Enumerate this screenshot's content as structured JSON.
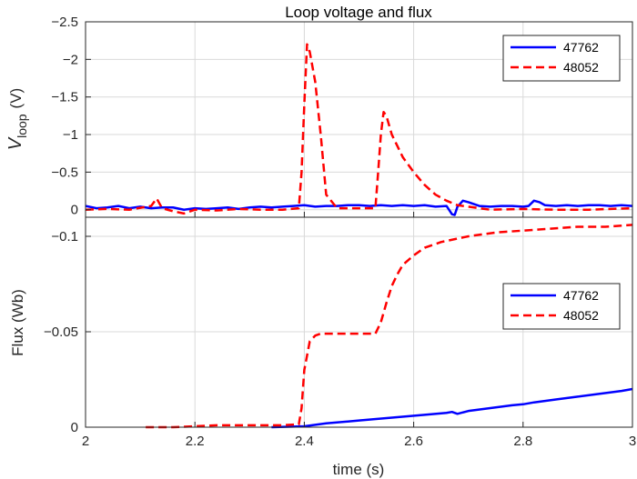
{
  "chart_data": [
    {
      "type": "line",
      "title": "Loop voltage and flux",
      "ylabel_main": "V",
      "ylabel_sub": "loop",
      "ylabel_unit": "(V)",
      "xlabel": "",
      "xlim": [
        2,
        3
      ],
      "ylim": [
        0.1,
        -2.5
      ],
      "y_direction": "reversed",
      "grid": true,
      "legend_position": "top-right",
      "x_ticks": [
        "2",
        "2.2",
        "2.4",
        "2.6",
        "2.8",
        "3"
      ],
      "y_ticks": [
        {
          "v": 0,
          "label": "0"
        },
        {
          "v": -0.5,
          "label": "−0.5"
        },
        {
          "v": -1,
          "label": "−1"
        },
        {
          "v": -1.5,
          "label": "−1.5"
        },
        {
          "v": -2,
          "label": "−2"
        },
        {
          "v": -2.5,
          "label": "−2.5"
        }
      ],
      "series": [
        {
          "name": "47762",
          "color": "#0000ff",
          "style": "solid",
          "x": [
            2.0,
            2.02,
            2.04,
            2.06,
            2.08,
            2.1,
            2.12,
            2.14,
            2.16,
            2.18,
            2.2,
            2.22,
            2.24,
            2.26,
            2.28,
            2.3,
            2.32,
            2.34,
            2.36,
            2.38,
            2.4,
            2.42,
            2.44,
            2.46,
            2.48,
            2.5,
            2.52,
            2.54,
            2.56,
            2.58,
            2.6,
            2.62,
            2.64,
            2.66,
            2.67,
            2.675,
            2.68,
            2.69,
            2.7,
            2.72,
            2.74,
            2.76,
            2.78,
            2.8,
            2.81,
            2.82,
            2.83,
            2.84,
            2.86,
            2.88,
            2.9,
            2.92,
            2.94,
            2.96,
            2.98,
            3.0
          ],
          "y": [
            -0.05,
            -0.02,
            -0.03,
            -0.05,
            -0.02,
            -0.04,
            -0.02,
            -0.03,
            -0.03,
            0.0,
            -0.02,
            -0.01,
            -0.02,
            -0.03,
            -0.01,
            -0.03,
            -0.04,
            -0.03,
            -0.04,
            -0.05,
            -0.06,
            -0.04,
            -0.05,
            -0.05,
            -0.06,
            -0.06,
            -0.05,
            -0.06,
            -0.05,
            -0.06,
            -0.05,
            -0.06,
            -0.04,
            -0.05,
            0.06,
            0.07,
            -0.04,
            -0.12,
            -0.1,
            -0.05,
            -0.04,
            -0.05,
            -0.05,
            -0.04,
            -0.05,
            -0.12,
            -0.1,
            -0.06,
            -0.05,
            -0.06,
            -0.05,
            -0.06,
            -0.06,
            -0.05,
            -0.06,
            -0.05
          ]
        },
        {
          "name": "48052",
          "color": "#ff0000",
          "style": "dashed",
          "x": [
            2.0,
            2.04,
            2.08,
            2.12,
            2.13,
            2.14,
            2.16,
            2.18,
            2.2,
            2.24,
            2.28,
            2.32,
            2.36,
            2.39,
            2.395,
            2.4,
            2.405,
            2.41,
            2.415,
            2.42,
            2.43,
            2.44,
            2.46,
            2.5,
            2.53,
            2.535,
            2.54,
            2.545,
            2.55,
            2.56,
            2.57,
            2.58,
            2.6,
            2.62,
            2.64,
            2.66,
            2.68,
            2.7,
            2.74,
            2.8,
            2.86,
            2.92,
            3.0
          ],
          "y": [
            0.0,
            -0.01,
            0.0,
            -0.05,
            -0.15,
            -0.02,
            0.02,
            0.05,
            0.0,
            0.01,
            -0.01,
            0.0,
            0.0,
            -0.02,
            -0.5,
            -1.4,
            -2.2,
            -2.1,
            -1.9,
            -1.7,
            -1.0,
            -0.2,
            -0.02,
            -0.02,
            -0.02,
            -0.5,
            -1.0,
            -1.3,
            -1.25,
            -1.0,
            -0.85,
            -0.7,
            -0.5,
            -0.33,
            -0.2,
            -0.12,
            -0.06,
            -0.04,
            0.0,
            -0.01,
            0.0,
            0.0,
            -0.02
          ]
        }
      ]
    },
    {
      "type": "line",
      "title": "",
      "ylabel": "Flux (Wb)",
      "xlabel": "time (s)",
      "xlim": [
        2,
        3
      ],
      "ylim": [
        0,
        -0.11
      ],
      "y_direction": "reversed",
      "grid": true,
      "legend_position": "center-right",
      "x_ticks": [
        "2",
        "2.2",
        "2.4",
        "2.6",
        "2.8",
        "3"
      ],
      "y_ticks": [
        {
          "v": 0,
          "label": "0"
        },
        {
          "v": -0.05,
          "label": "−0.05"
        },
        {
          "v": -0.1,
          "label": "−0.1"
        }
      ],
      "series": [
        {
          "name": "47762",
          "color": "#0000ff",
          "style": "solid",
          "x": [
            2.34,
            2.4,
            2.44,
            2.5,
            2.56,
            2.62,
            2.66,
            2.67,
            2.68,
            2.7,
            2.74,
            2.78,
            2.8,
            2.82,
            2.86,
            2.9,
            2.94,
            2.98,
            3.0
          ],
          "y": [
            0.0,
            -0.0005,
            -0.002,
            -0.0035,
            -0.005,
            -0.0065,
            -0.0075,
            -0.008,
            -0.007,
            -0.0085,
            -0.01,
            -0.0115,
            -0.012,
            -0.013,
            -0.0145,
            -0.016,
            -0.0175,
            -0.019,
            -0.02
          ]
        },
        {
          "name": "48052",
          "color": "#ff0000",
          "style": "dashed",
          "x": [
            2.11,
            2.16,
            2.2,
            2.24,
            2.3,
            2.36,
            2.39,
            2.395,
            2.4,
            2.41,
            2.42,
            2.43,
            2.44,
            2.5,
            2.53,
            2.54,
            2.55,
            2.56,
            2.57,
            2.58,
            2.6,
            2.62,
            2.65,
            2.7,
            2.75,
            2.8,
            2.85,
            2.9,
            2.95,
            3.0
          ],
          "y": [
            0.0,
            0.0,
            -0.0005,
            -0.001,
            -0.001,
            -0.001,
            -0.0015,
            -0.01,
            -0.03,
            -0.045,
            -0.048,
            -0.049,
            -0.049,
            -0.049,
            -0.049,
            -0.055,
            -0.065,
            -0.074,
            -0.08,
            -0.085,
            -0.09,
            -0.094,
            -0.097,
            -0.1,
            -0.102,
            -0.103,
            -0.104,
            -0.105,
            -0.105,
            -0.106
          ]
        }
      ]
    }
  ]
}
